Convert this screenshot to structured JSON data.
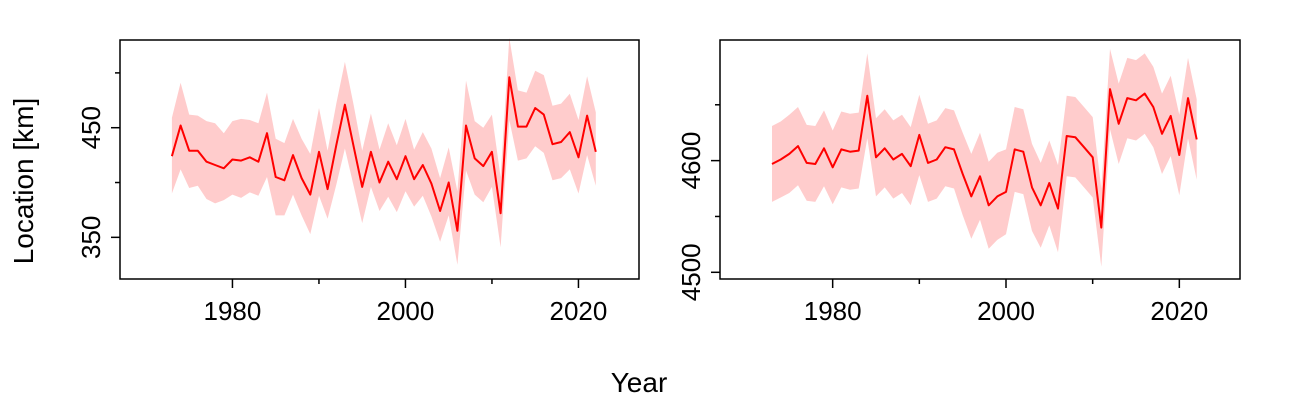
{
  "figure": {
    "ylabel": "Location [km]",
    "xlabel": "Year"
  },
  "colors": {
    "line": "#ff0000",
    "band": "#ffcccc",
    "axis": "#000000",
    "background": "#ffffff"
  },
  "chart_data": [
    {
      "type": "line",
      "title": "",
      "xlim": [
        1967,
        2027
      ],
      "ylim": [
        312,
        530
      ],
      "xticks": [
        1980,
        2000,
        2020
      ],
      "xminor": [
        1990,
        2010
      ],
      "yticks": [
        350,
        450
      ],
      "yminor": [
        400,
        500
      ],
      "grid": false,
      "legend": "none",
      "x": [
        1973,
        1974,
        1975,
        1976,
        1977,
        1978,
        1979,
        1980,
        1981,
        1982,
        1983,
        1984,
        1985,
        1986,
        1987,
        1988,
        1989,
        1990,
        1991,
        1992,
        1993,
        1994,
        1995,
        1996,
        1997,
        1998,
        1999,
        2000,
        2001,
        2002,
        2003,
        2004,
        2005,
        2006,
        2007,
        2008,
        2009,
        2010,
        2011,
        2012,
        2013,
        2014,
        2015,
        2016,
        2017,
        2018,
        2019,
        2020,
        2021,
        2022
      ],
      "series": [
        {
          "values": [
            424,
            452,
            429,
            429,
            419,
            416,
            413,
            421,
            420,
            423,
            419,
            445,
            405,
            402,
            425,
            404,
            389,
            428,
            394,
            434,
            471,
            433,
            396,
            428,
            400,
            419,
            403,
            424,
            403,
            416,
            399,
            374,
            400,
            356,
            452,
            422,
            415,
            428,
            372,
            496,
            451,
            451,
            468,
            462,
            435,
            437,
            446,
            423,
            461,
            428
          ],
          "lower": [
            390,
            412,
            395,
            397,
            385,
            381,
            384,
            389,
            386,
            391,
            388,
            405,
            370,
            370,
            389,
            370,
            353,
            388,
            367,
            398,
            431,
            397,
            363,
            396,
            374,
            387,
            373,
            392,
            378,
            388,
            369,
            346,
            370,
            325,
            411,
            389,
            382,
            396,
            341,
            457,
            420,
            422,
            433,
            427,
            402,
            404,
            412,
            390,
            425,
            397
          ],
          "upper": [
            459,
            491,
            462,
            461,
            456,
            454,
            445,
            456,
            458,
            457,
            454,
            482,
            440,
            436,
            458,
            440,
            426,
            468,
            429,
            472,
            510,
            471,
            429,
            463,
            430,
            454,
            434,
            458,
            430,
            446,
            431,
            404,
            432,
            392,
            493,
            456,
            450,
            462,
            405,
            532,
            484,
            482,
            502,
            498,
            470,
            472,
            481,
            457,
            497,
            464
          ]
        }
      ]
    },
    {
      "type": "line",
      "title": "",
      "xlim": [
        1967,
        2027
      ],
      "ylim": [
        4494,
        4708
      ],
      "xticks": [
        1980,
        2000,
        2020
      ],
      "xminor": [
        1990,
        2010
      ],
      "yticks": [
        4500,
        4600
      ],
      "yminor": [
        4550,
        4650
      ],
      "grid": false,
      "legend": "none",
      "x": [
        1973,
        1974,
        1975,
        1976,
        1977,
        1978,
        1979,
        1980,
        1981,
        1982,
        1983,
        1984,
        1985,
        1986,
        1987,
        1988,
        1989,
        1990,
        1991,
        1992,
        1993,
        1994,
        1995,
        1996,
        1997,
        1998,
        1999,
        2000,
        2001,
        2002,
        2003,
        2004,
        2005,
        2006,
        2007,
        2008,
        2009,
        2010,
        2011,
        2012,
        2013,
        2014,
        2015,
        2016,
        2017,
        2018,
        2019,
        2020,
        2021,
        2022
      ],
      "series": [
        {
          "values": [
            4597,
            4601,
            4606,
            4613,
            4598,
            4597,
            4611,
            4594,
            4610,
            4608,
            4609,
            4658,
            4603,
            4611,
            4601,
            4606,
            4595,
            4623,
            4598,
            4601,
            4612,
            4610,
            4588,
            4568,
            4586,
            4560,
            4568,
            4572,
            4610,
            4608,
            4576,
            4560,
            4580,
            4557,
            4622,
            4621,
            4612,
            4603,
            4540,
            4664,
            4633,
            4656,
            4654,
            4660,
            4648,
            4624,
            4640,
            4605,
            4656,
            4619
          ],
          "lower": [
            4563,
            4567,
            4571,
            4578,
            4564,
            4563,
            4577,
            4561,
            4576,
            4574,
            4575,
            4620,
            4568,
            4576,
            4566,
            4571,
            4560,
            4587,
            4563,
            4566,
            4577,
            4575,
            4551,
            4530,
            4547,
            4521,
            4529,
            4534,
            4572,
            4570,
            4537,
            4522,
            4542,
            4518,
            4586,
            4585,
            4576,
            4567,
            4505,
            4628,
            4597,
            4620,
            4618,
            4624,
            4612,
            4588,
            4604,
            4569,
            4620,
            4583
          ],
          "upper": [
            4631,
            4635,
            4641,
            4648,
            4632,
            4631,
            4645,
            4627,
            4644,
            4642,
            4643,
            4696,
            4638,
            4646,
            4636,
            4641,
            4630,
            4659,
            4633,
            4636,
            4647,
            4645,
            4625,
            4606,
            4625,
            4599,
            4607,
            4610,
            4648,
            4646,
            4615,
            4598,
            4618,
            4596,
            4658,
            4657,
            4648,
            4639,
            4575,
            4700,
            4669,
            4692,
            4690,
            4696,
            4684,
            4660,
            4676,
            4641,
            4692,
            4655
          ]
        }
      ]
    }
  ]
}
